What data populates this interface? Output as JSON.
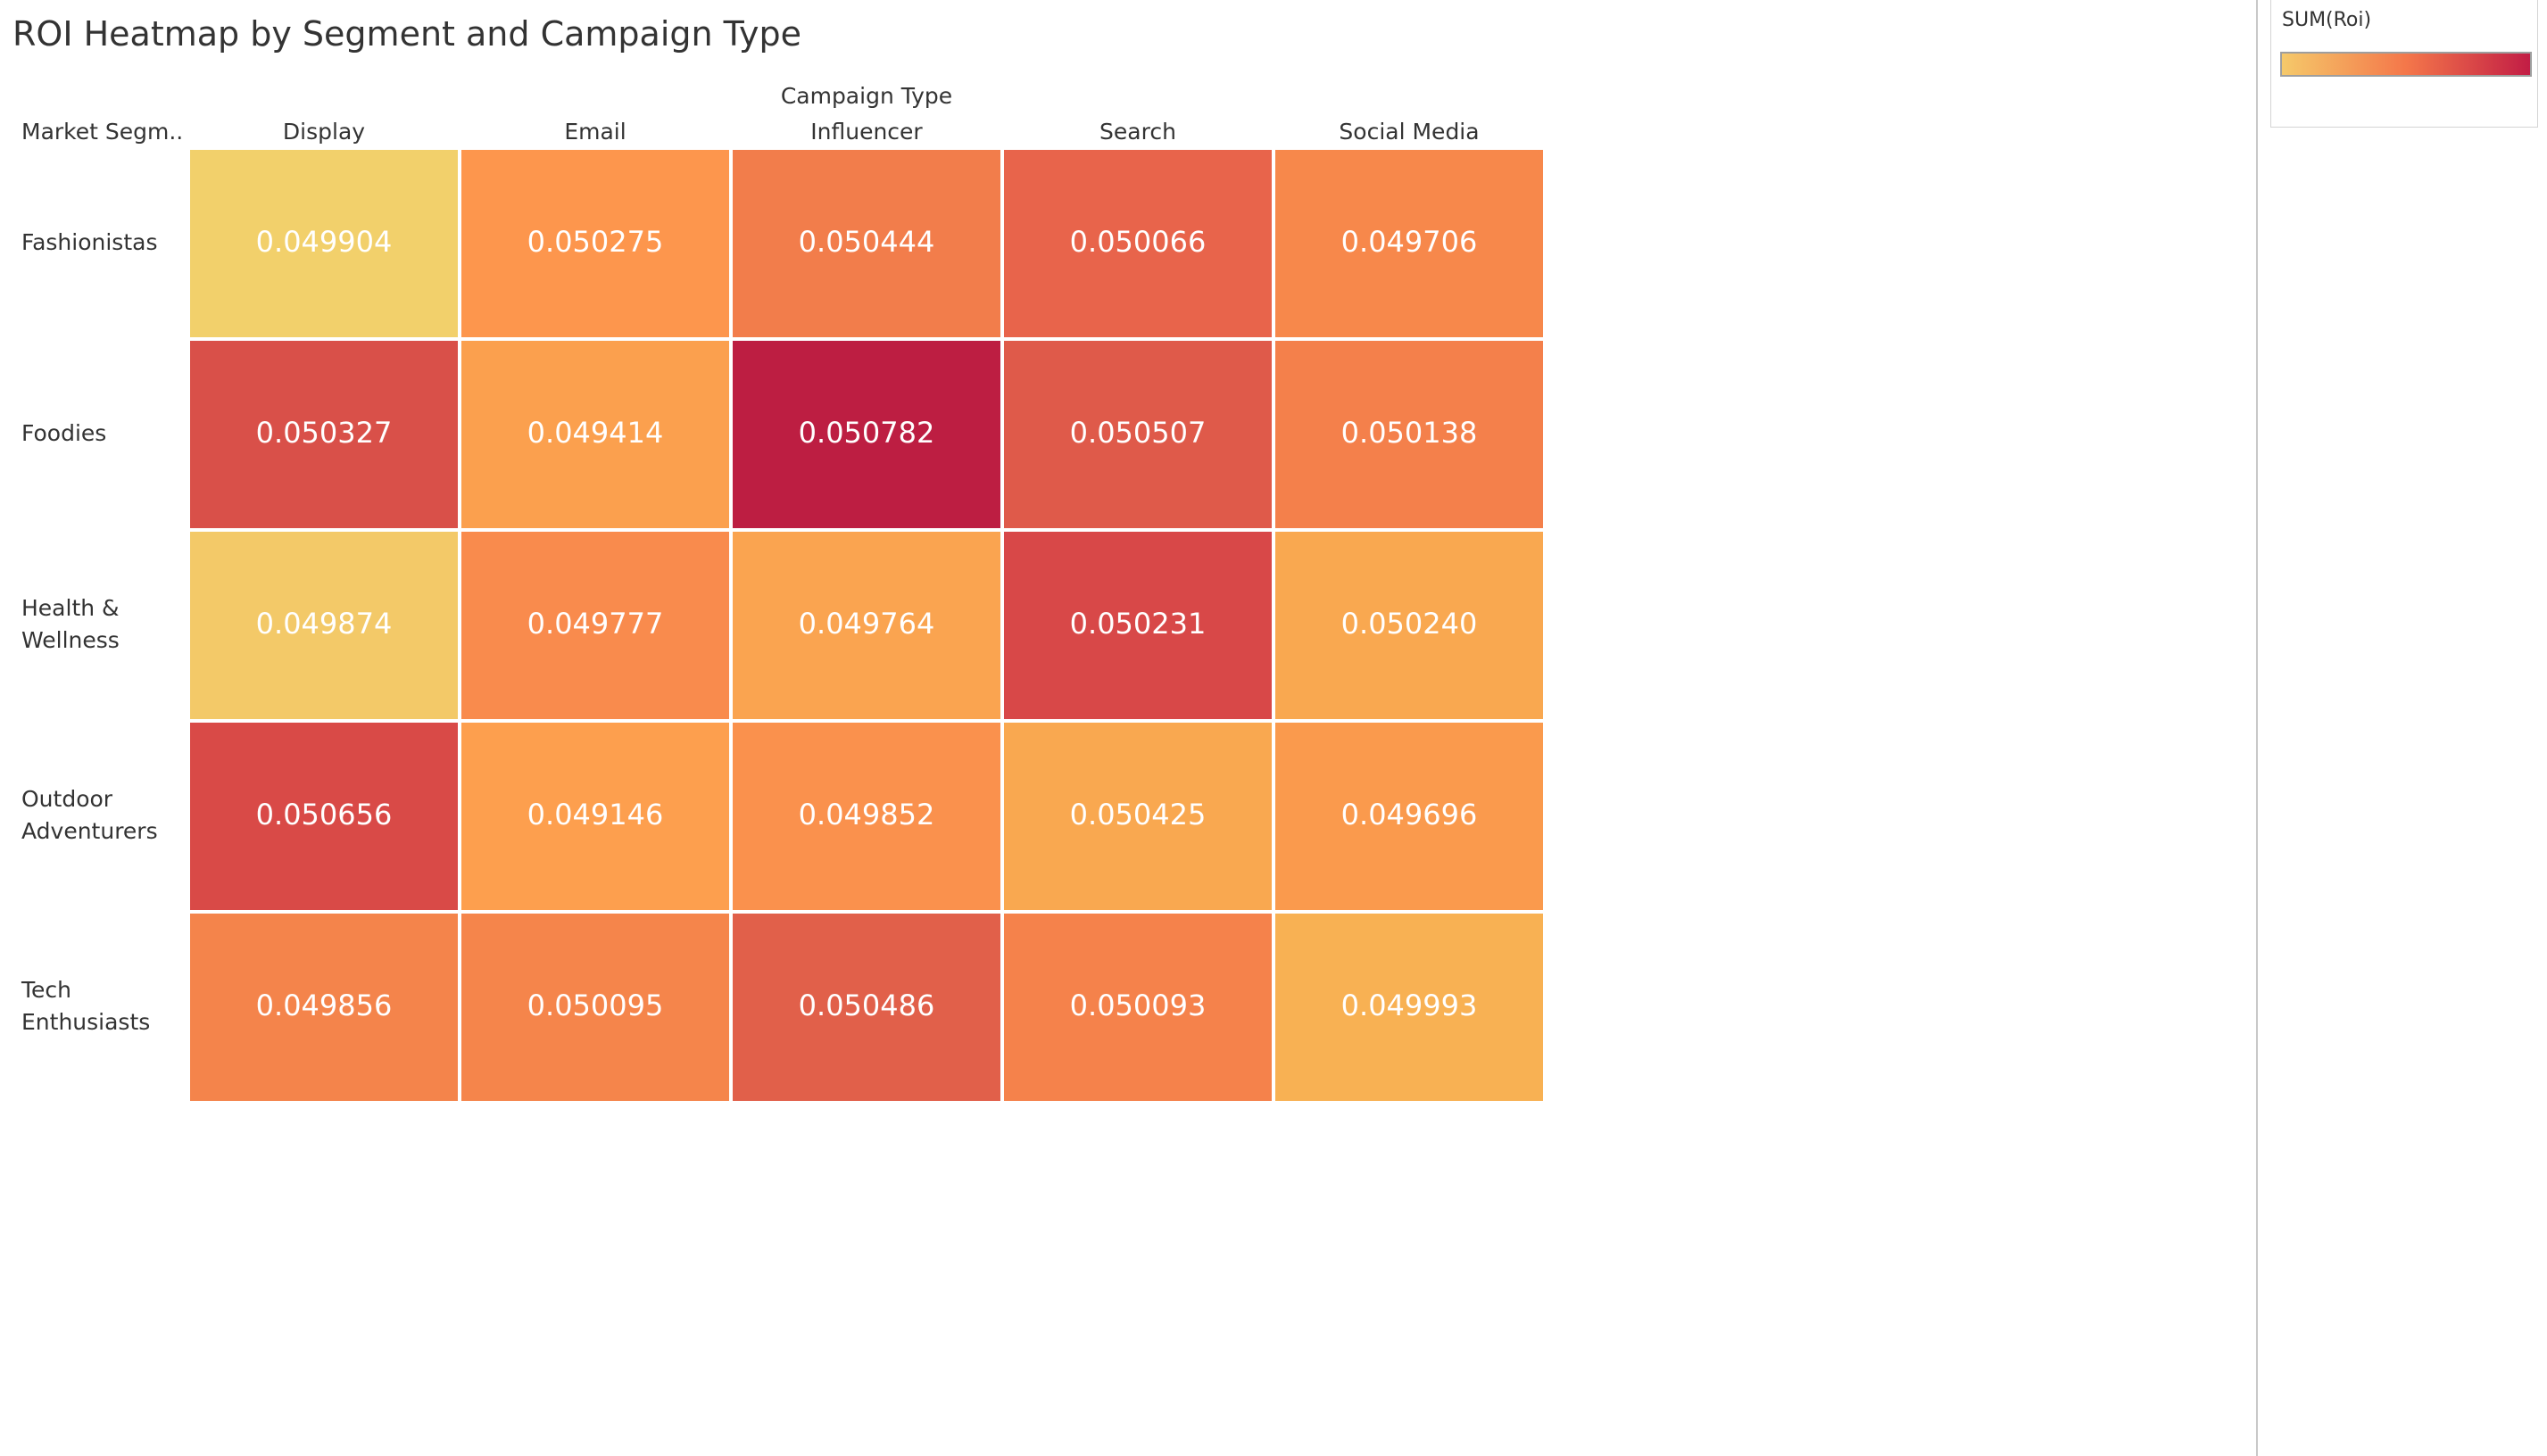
{
  "title": "ROI Heatmap by Segment and Campaign Type",
  "chart_data": {
    "type": "heatmap",
    "title": "ROI Heatmap by Segment and Campaign Type",
    "row_field": "Market Segm..",
    "column_field": "Campaign Type",
    "columns": [
      "Display",
      "Email",
      "Influencer",
      "Search",
      "Social Media"
    ],
    "rows": [
      {
        "label": [
          "Fashionistas"
        ],
        "values": [
          "0.049904",
          "0.050275",
          "0.050444",
          "0.050066",
          "0.049706"
        ]
      },
      {
        "label": [
          "Foodies"
        ],
        "values": [
          "0.050327",
          "0.049414",
          "0.050782",
          "0.050507",
          "0.050138"
        ]
      },
      {
        "label": [
          "Health &",
          "Wellness"
        ],
        "values": [
          "0.049874",
          "0.049777",
          "0.049764",
          "0.050231",
          "0.050240"
        ]
      },
      {
        "label": [
          "Outdoor",
          "Adventurers"
        ],
        "values": [
          "0.050656",
          "0.049146",
          "0.049852",
          "0.050425",
          "0.049696"
        ]
      },
      {
        "label": [
          "Tech",
          "Enthusiasts"
        ],
        "values": [
          "0.049856",
          "0.050095",
          "0.050486",
          "0.050093",
          "0.049993"
        ]
      }
    ],
    "cell_colors": [
      [
        "#f2d06b",
        "#fd964d",
        "#f27d4b",
        "#e8644b",
        "#f7884b"
      ],
      [
        "#d95049",
        "#fba04e",
        "#bd1e42",
        "#df5a4a",
        "#f4804b"
      ],
      [
        "#f3c968",
        "#f98b4d",
        "#faa450",
        "#d84848",
        "#f9a850"
      ],
      [
        "#d94a47",
        "#fd9f4e",
        "#fa914d",
        "#f9a850",
        "#fa9a4d"
      ],
      [
        "#f4844b",
        "#f5854b",
        "#e1604a",
        "#f5824b",
        "#f8b153"
      ]
    ]
  },
  "legend": {
    "title": "SUM(Roi)",
    "colors": {
      "low": "#f5c96a",
      "mid": "#f4774a",
      "high": "#c21d45"
    }
  }
}
